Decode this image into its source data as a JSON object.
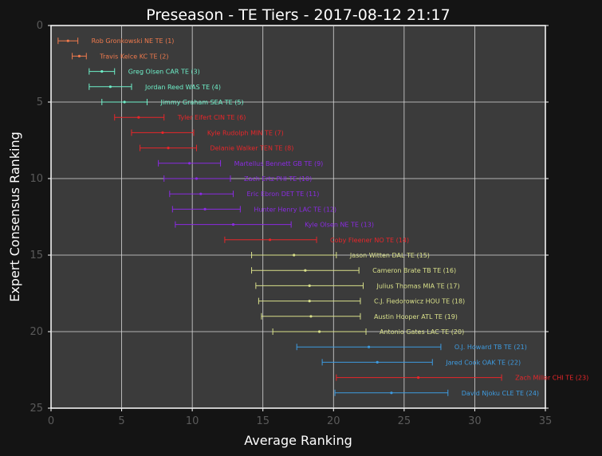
{
  "chart_data": {
    "type": "scatter",
    "title": "Preseason - TE Tiers - 2017-08-12 21:17",
    "xlabel": "Average Ranking",
    "ylabel": "Expert Consensus Ranking",
    "xlim": [
      0,
      35
    ],
    "ylim": [
      25,
      0
    ],
    "xticks": [
      "0",
      "5",
      "10",
      "15",
      "20",
      "25",
      "30",
      "35"
    ],
    "yticks": [
      "0",
      "5",
      "10",
      "15",
      "20",
      "25"
    ],
    "grid": true,
    "colors": {
      "background": "#141414",
      "plot_area": "#3b3b3b",
      "grid": "#d8d8d8",
      "tier_1": "#f07a4d",
      "tier_2": "#6ef0c9",
      "tier_3": "#e8262a",
      "tier_4": "#8a2be2",
      "tier_5": "#e8262a",
      "tier_6": "#d9e08a",
      "tier_7": "#3d9be0",
      "tier_8": "#e8262a",
      "tier_9": "#3d9be0"
    },
    "points": [
      {
        "label": "Rob Gronkowski NE  TE (1)",
        "y": 1,
        "x": 1.2,
        "xmin": 0.5,
        "xmax": 1.9,
        "tier": 1
      },
      {
        "label": "Travis Kelce KC  TE (2)",
        "y": 2,
        "x": 2.0,
        "xmin": 1.5,
        "xmax": 2.5,
        "tier": 1
      },
      {
        "label": "Greg Olsen CAR  TE (3)",
        "y": 3,
        "x": 3.6,
        "xmin": 2.7,
        "xmax": 4.5,
        "tier": 2
      },
      {
        "label": "Jordan Reed WAS  TE (4)",
        "y": 4,
        "x": 4.2,
        "xmin": 2.7,
        "xmax": 5.7,
        "tier": 2
      },
      {
        "label": "Jimmy Graham SEA  TE (5)",
        "y": 5,
        "x": 5.2,
        "xmin": 3.6,
        "xmax": 6.8,
        "tier": 2
      },
      {
        "label": "Tyler Eifert CIN  TE (6)",
        "y": 6,
        "x": 6.2,
        "xmin": 4.5,
        "xmax": 8.0,
        "tier": 3
      },
      {
        "label": "Kyle Rudolph MIN  TE (7)",
        "y": 7,
        "x": 7.9,
        "xmin": 5.7,
        "xmax": 10.1,
        "tier": 3
      },
      {
        "label": "Delanie Walker TEN  TE (8)",
        "y": 8,
        "x": 8.3,
        "xmin": 6.3,
        "xmax": 10.3,
        "tier": 3
      },
      {
        "label": "Martellus Bennett GB  TE (9)",
        "y": 9,
        "x": 9.8,
        "xmin": 7.6,
        "xmax": 12.0,
        "tier": 4
      },
      {
        "label": "Zach Ertz PHI  TE (10)",
        "y": 10,
        "x": 10.3,
        "xmin": 8.0,
        "xmax": 12.7,
        "tier": 4
      },
      {
        "label": "Eric Ebron DET  TE (11)",
        "y": 11,
        "x": 10.6,
        "xmin": 8.4,
        "xmax": 12.9,
        "tier": 4
      },
      {
        "label": "Hunter Henry LAC  TE (12)",
        "y": 12,
        "x": 10.9,
        "xmin": 8.6,
        "xmax": 13.4,
        "tier": 4
      },
      {
        "label": "Kyle Olsen NE  TE (13)",
        "y": 13,
        "x": 12.9,
        "xmin": 8.8,
        "xmax": 17.0,
        "tier": 4
      },
      {
        "label": "Coby Fleener NO  TE (14)",
        "y": 14,
        "x": 15.5,
        "xmin": 12.3,
        "xmax": 18.8,
        "tier": 5
      },
      {
        "label": "Jason Witten DAL  TE (15)",
        "y": 15,
        "x": 17.2,
        "xmin": 14.2,
        "xmax": 20.2,
        "tier": 6
      },
      {
        "label": "Cameron Brate TB  TE (16)",
        "y": 16,
        "x": 18.0,
        "xmin": 14.2,
        "xmax": 21.8,
        "tier": 6
      },
      {
        "label": "Julius Thomas MIA  TE (17)",
        "y": 17,
        "x": 18.3,
        "xmin": 14.5,
        "xmax": 22.1,
        "tier": 6
      },
      {
        "label": "C.J. Fiedorowicz HOU  TE (18)",
        "y": 18,
        "x": 18.3,
        "xmin": 14.7,
        "xmax": 21.9,
        "tier": 6
      },
      {
        "label": "Austin Hooper ATL  TE (19)",
        "y": 19,
        "x": 18.4,
        "xmin": 14.9,
        "xmax": 21.9,
        "tier": 6
      },
      {
        "label": "Antonio Gates LAC  TE (20)",
        "y": 20,
        "x": 19.0,
        "xmin": 15.7,
        "xmax": 22.3,
        "tier": 6
      },
      {
        "label": "O.J. Howard TB  TE (21)",
        "y": 21,
        "x": 22.5,
        "xmin": 17.4,
        "xmax": 27.6,
        "tier": 7
      },
      {
        "label": "Jared Cook OAK  TE (22)",
        "y": 22,
        "x": 23.1,
        "xmin": 19.2,
        "xmax": 27.0,
        "tier": 7
      },
      {
        "label": "Zach Miller CHI  TE (23)",
        "y": 23,
        "x": 26.0,
        "xmin": 20.2,
        "xmax": 31.9,
        "tier": 8
      },
      {
        "label": "David Njoku CLE  TE (24)",
        "y": 24,
        "x": 24.1,
        "xmin": 20.1,
        "xmax": 28.1,
        "tier": 9
      }
    ]
  }
}
